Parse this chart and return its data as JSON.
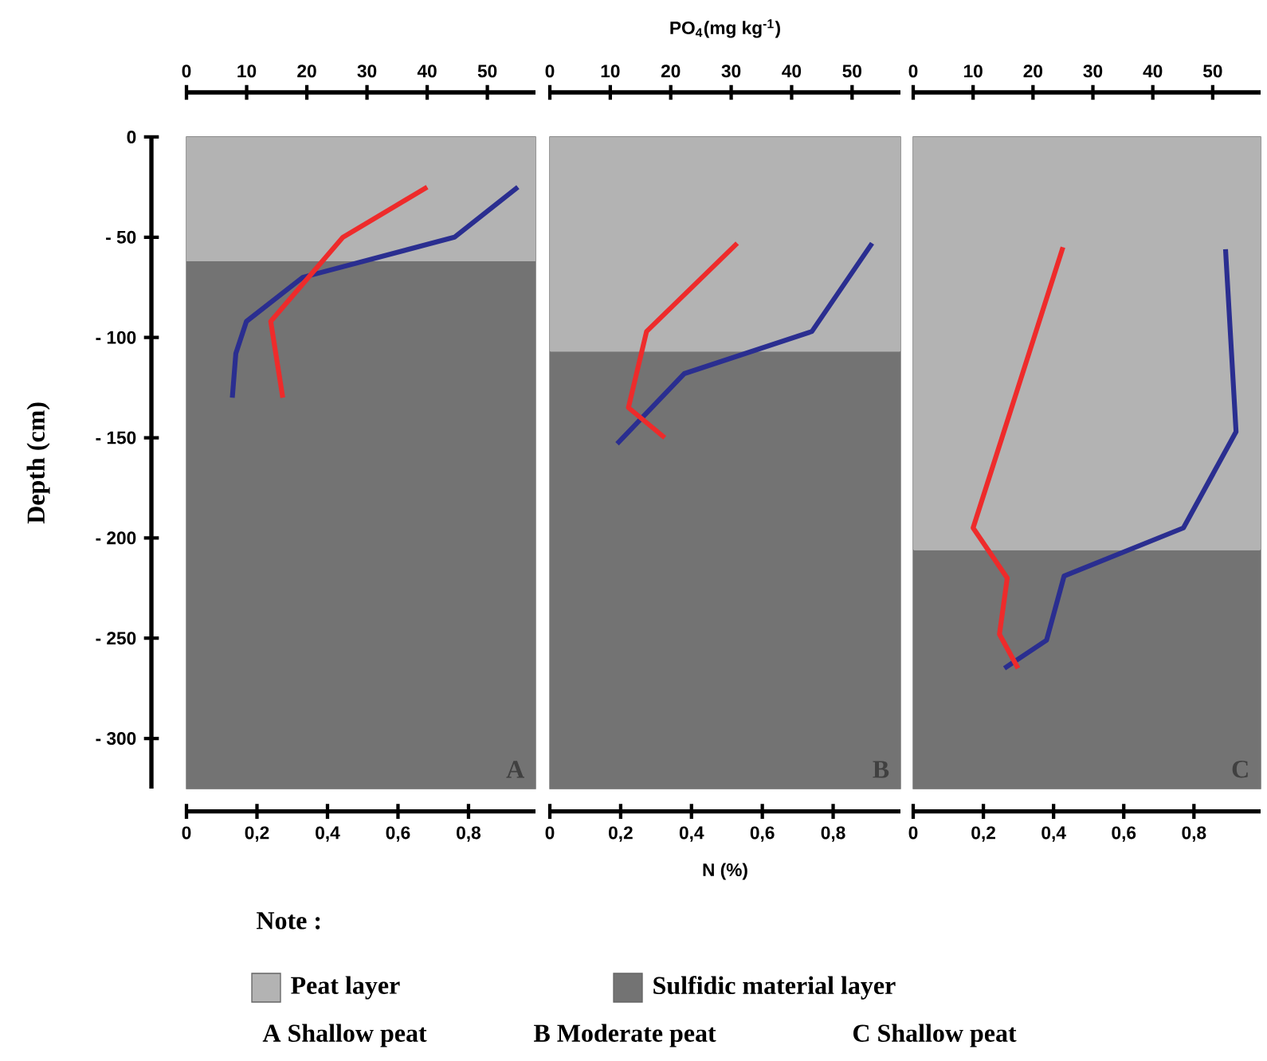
{
  "chart_data": [
    {
      "type": "line",
      "ylabel": "Depth (cm)",
      "xlim": [
        0,
        0.99
      ],
      "xticks": [
        0,
        {
          "value": 0.2,
          "label": "0,2"
        },
        {
          "value": 0.4,
          "label": "0,4"
        },
        {
          "value": 0.6,
          "label": "0,6"
        },
        {
          "value": 0.8,
          "label": "0,8"
        }
      ],
      "x2lim": [
        0,
        58
      ],
      "x2ticks": [
        0,
        10,
        20,
        30,
        40,
        50
      ],
      "ylim": [
        -325,
        0
      ],
      "yticks": [
        0,
        {
          "value": -50,
          "label": "- 50"
        },
        {
          "value": -100,
          "label": "- 100"
        },
        {
          "value": -150,
          "label": "- 150"
        },
        {
          "value": -200,
          "label": "- 200"
        },
        {
          "value": -250,
          "label": "- 250"
        },
        {
          "value": -300,
          "label": "- 300"
        }
      ],
      "bands": [
        {
          "axis": "y",
          "from": 0,
          "to": -62,
          "color": "#b3b3b3",
          "label": "Peat layer"
        },
        {
          "axis": "y",
          "from": -62,
          "to": -325,
          "color": "#737373",
          "label": "Sulfidic material layer"
        }
      ],
      "series": [
        {
          "color": "#ee2b2b",
          "axis": "x2",
          "x": [
            40,
            26,
            14,
            16
          ],
          "values": [
            -25,
            -50,
            -92,
            -130
          ]
        },
        {
          "color": "#2a2e90",
          "x": [
            0.94,
            0.76,
            0.33,
            0.17,
            0.14,
            0.13
          ],
          "values": [
            -25,
            -50,
            -70,
            -92,
            -108,
            -130
          ]
        }
      ],
      "annotations": [
        "A",
        "A  Shallow peat",
        "Note :"
      ],
      "legend": "bottom"
    },
    {
      "type": "line",
      "xlabel": "N (%)",
      "x2label": "PO$_{4}$(mg kg$^{-1}$)",
      "tick_labels": "x",
      "xlim": [
        0,
        0.99
      ],
      "xticks": [
        0,
        {
          "value": 0.2,
          "label": "0,2"
        },
        {
          "value": 0.4,
          "label": "0,4"
        },
        {
          "value": 0.6,
          "label": "0,6"
        },
        {
          "value": 0.8,
          "label": "0,8"
        }
      ],
      "x2lim": [
        0,
        58
      ],
      "x2ticks": [
        0,
        10,
        20,
        30,
        40,
        50
      ],
      "ylim": [
        -325,
        0
      ],
      "bands": [
        {
          "axis": "y",
          "from": 0,
          "to": -107,
          "color": "#b3b3b3"
        },
        {
          "axis": "y",
          "from": -107,
          "to": -325,
          "color": "#737373"
        }
      ],
      "series": [
        {
          "color": "#ee2b2b",
          "axis": "x2",
          "x": [
            31,
            16,
            13,
            19
          ],
          "values": [
            -53,
            -97,
            -135,
            -150
          ]
        },
        {
          "color": "#2a2e90",
          "x": [
            0.91,
            0.74,
            0.38,
            0.19
          ],
          "values": [
            -53,
            -97,
            -118,
            -153
          ]
        }
      ],
      "annotations": [
        "B",
        "B  Moderate  peat"
      ]
    },
    {
      "type": "line",
      "tick_labels": "x",
      "xlim": [
        0,
        0.99
      ],
      "xticks": [
        0,
        {
          "value": 0.2,
          "label": "0,2"
        },
        {
          "value": 0.4,
          "label": "0,4"
        },
        {
          "value": 0.6,
          "label": "0,6"
        },
        {
          "value": 0.8,
          "label": "0,8"
        }
      ],
      "x2lim": [
        0,
        58
      ],
      "x2ticks": [
        0,
        10,
        20,
        30,
        40,
        50
      ],
      "ylim": [
        -325,
        0
      ],
      "bands": [
        {
          "axis": "y",
          "from": 0,
          "to": -206,
          "color": "#b3b3b3"
        },
        {
          "axis": "y",
          "from": -206,
          "to": -325,
          "color": "#737373"
        }
      ],
      "series": [
        {
          "color": "#ee2b2b",
          "axis": "x2",
          "x": [
            25,
            10,
            15.7,
            14.4,
            17.5
          ],
          "values": [
            -55,
            -195,
            -220,
            -248,
            -265
          ]
        },
        {
          "color": "#2a2e90",
          "x": [
            0.89,
            0.92,
            0.77,
            0.43,
            0.38,
            0.26
          ],
          "values": [
            -56,
            -147,
            -195,
            -219,
            -251,
            -265
          ]
        }
      ],
      "annotations": [
        "C",
        "C  Shallow peat"
      ]
    }
  ]
}
